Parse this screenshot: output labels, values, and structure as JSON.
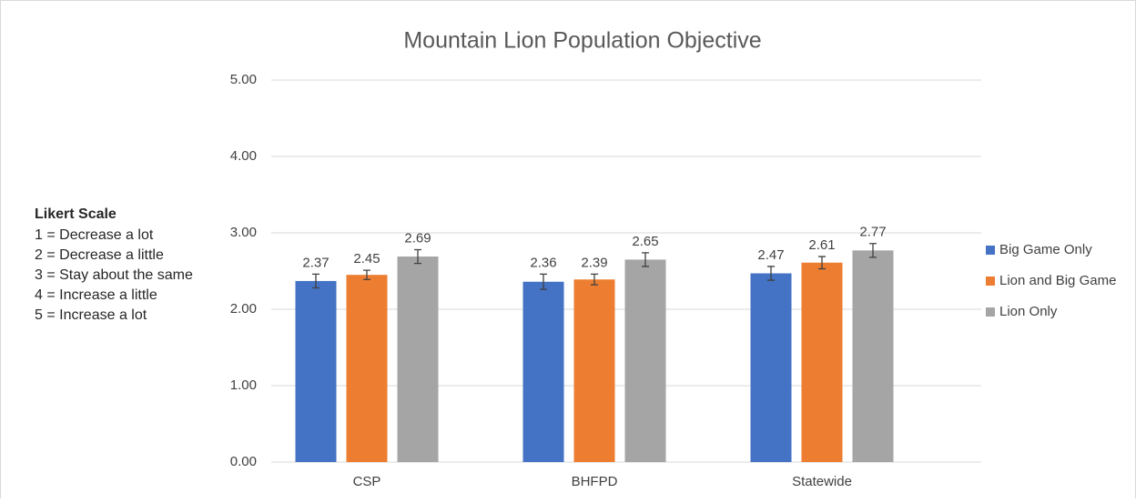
{
  "chart_data": {
    "type": "bar",
    "title": "Mountain Lion Population Objective",
    "categories": [
      "CSP",
      "BHFPD",
      "Statewide"
    ],
    "series": [
      {
        "name": "Big Game Only",
        "color": "#4472c4",
        "values": [
          2.37,
          2.36,
          2.47
        ],
        "errors": [
          0.09,
          0.1,
          0.09
        ]
      },
      {
        "name": "Lion and Big Game",
        "color": "#ed7d31",
        "values": [
          2.45,
          2.39,
          2.61
        ],
        "errors": [
          0.06,
          0.07,
          0.08
        ]
      },
      {
        "name": "Lion Only",
        "color": "#a5a5a5",
        "values": [
          2.69,
          2.65,
          2.77
        ],
        "errors": [
          0.09,
          0.09,
          0.09
        ]
      }
    ],
    "ylim": [
      0,
      5
    ],
    "yticks": [
      {
        "value": 0,
        "label": "0.00"
      },
      {
        "value": 1,
        "label": "1.00"
      },
      {
        "value": 2,
        "label": "2.00"
      },
      {
        "value": 3,
        "label": "3.00"
      },
      {
        "value": 4,
        "label": "4.00"
      },
      {
        "value": 5,
        "label": "5.00"
      }
    ],
    "grid": true,
    "legend": "right",
    "annotations": {
      "heading": "Likert Scale",
      "lines": [
        "1 = Decrease a lot",
        "2 = Decrease a little",
        "3 = Stay about the same",
        "4 = Increase a little",
        "5 = Increase a lot"
      ]
    }
  }
}
